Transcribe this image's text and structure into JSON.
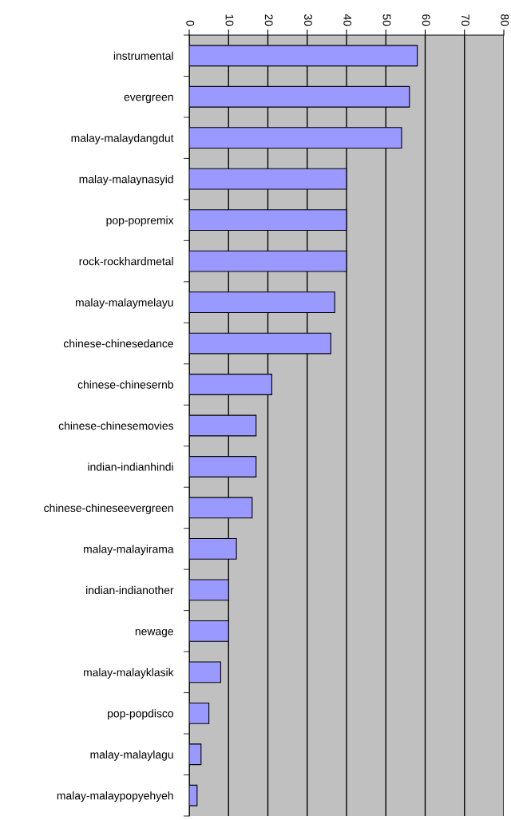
{
  "chart_data": {
    "type": "bar",
    "orientation": "horizontal",
    "categories": [
      "instrumental",
      "evergreen",
      "malay-malaydangdut",
      "malay-malaynasyid",
      "pop-popremix",
      "rock-rockhardmetal",
      "malay-malaymelayu",
      "chinese-chinesedance",
      "chinese-chinesernb",
      "chinese-chinesemovies",
      "indian-indianhindi",
      "chinese-chineseevergreen",
      "malay-malayirama",
      "indian-indianother",
      "newage",
      "malay-malayklasik",
      "pop-popdisco",
      "malay-malaylagu",
      "malay-malaypopyehyeh"
    ],
    "values": [
      58,
      56,
      54,
      40,
      40,
      40,
      37,
      36,
      21,
      17,
      17,
      16,
      12,
      10,
      10,
      8,
      5,
      3,
      2
    ],
    "color": "#9999ff",
    "xlim": [
      0,
      80
    ],
    "xticks": [
      0,
      10,
      20,
      30,
      40,
      50,
      60,
      70,
      80
    ],
    "grid": "x",
    "legend": false
  }
}
